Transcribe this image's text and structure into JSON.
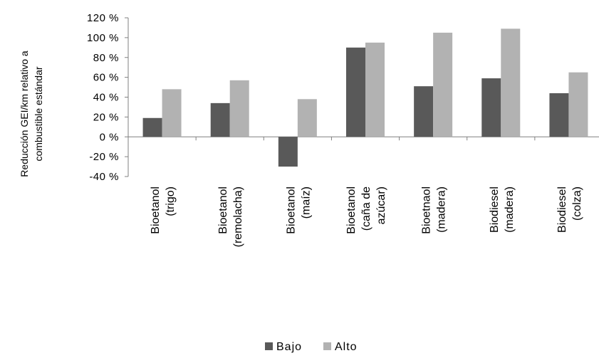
{
  "chart_data": {
    "type": "bar",
    "ylabel_lines": [
      "Reducción GEI/km relativo a",
      "combustible estándar"
    ],
    "categories": [
      [
        "Bioetanol",
        "(trigo)"
      ],
      [
        "Bioetanol",
        "(remolacha)"
      ],
      [
        "Bioetanol",
        "(maíz)"
      ],
      [
        "Bioetanol",
        "(caña de",
        "azúcar)"
      ],
      [
        "Bioetnaol",
        "(madera)"
      ],
      [
        "Biodiesel",
        "(madera)"
      ],
      [
        "Biodiesel",
        "(colza)"
      ]
    ],
    "series": [
      {
        "name": "Bajo",
        "color": "#595959",
        "values": [
          19,
          34,
          -30,
          90,
          51,
          59,
          44
        ]
      },
      {
        "name": "Alto",
        "color": "#b2b2b2",
        "values": [
          48,
          57,
          38,
          95,
          105,
          109,
          65
        ]
      }
    ],
    "yticks": [
      "-40 %",
      "-20 %",
      "0 %",
      "20 %",
      "40 %",
      "60 %",
      "80 %",
      "100 %",
      "120 %"
    ],
    "ylim": [
      -40,
      120
    ],
    "grid": false,
    "legend": "bottom"
  }
}
